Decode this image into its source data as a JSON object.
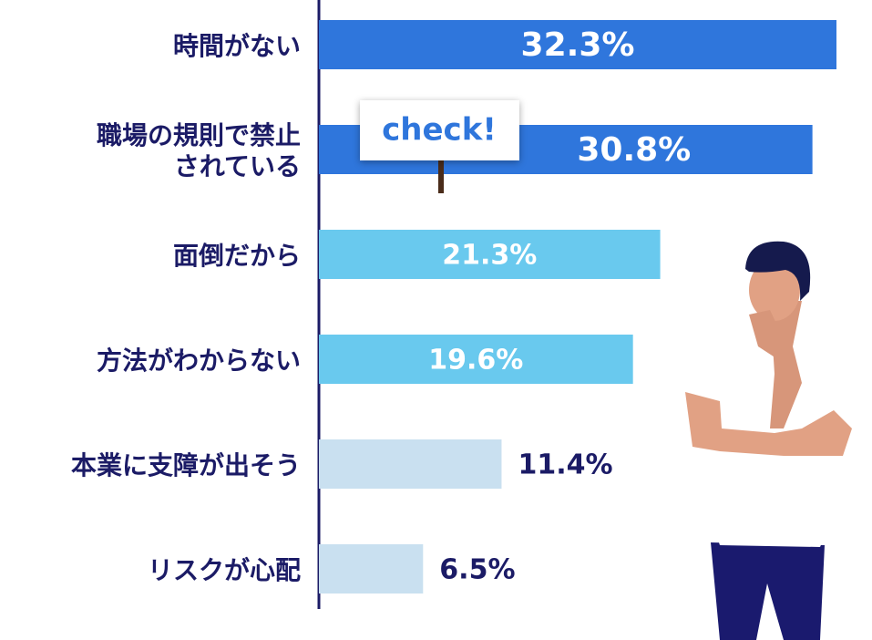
{
  "chart_data": {
    "type": "bar",
    "orientation": "horizontal",
    "categories": [
      "時間がない",
      "職場の規則で禁止\nされている",
      "面倒だから",
      "方法がわからない",
      "本業に支障が出そう",
      "リスクが心配"
    ],
    "values": [
      32.3,
      30.8,
      21.3,
      19.6,
      11.4,
      6.5
    ],
    "value_labels": [
      "32.3%",
      "30.8%",
      "21.3%",
      "19.6%",
      "11.4%",
      "6.5%"
    ],
    "colors": [
      "#2f76dc",
      "#2f76dc",
      "#69c9ee",
      "#69c9ee",
      "#c9e0f0",
      "#c9e0f0"
    ],
    "annotation": "check!"
  }
}
